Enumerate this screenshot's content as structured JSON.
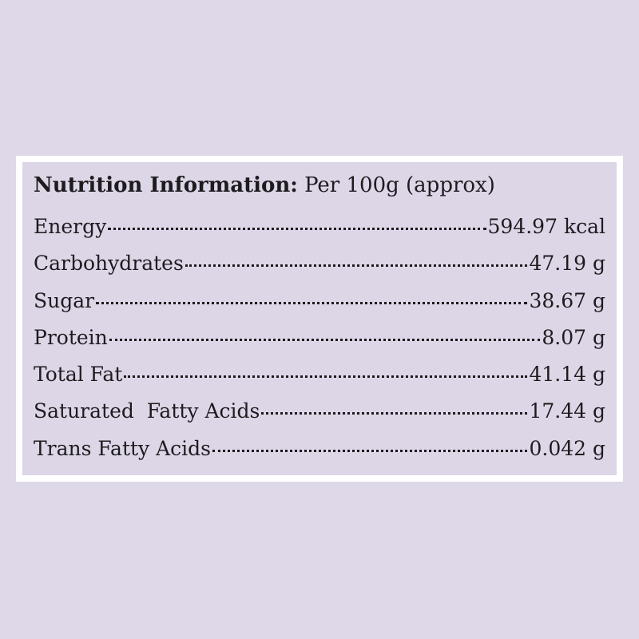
{
  "header": {
    "title": "Nutrition Information:",
    "subtitle": "Per 100g (approx)"
  },
  "table": {
    "rows": [
      [
        "Energy",
        "594.97 kcal"
      ],
      [
        "Carbohydrates",
        "47.19 g"
      ],
      [
        "Sugar",
        "38.67 g"
      ],
      [
        "Protein",
        "8.07 g"
      ],
      [
        "Total Fat",
        "41.14 g"
      ],
      [
        "Saturated  Fatty Acids",
        "17.44 g"
      ],
      [
        "Trans Fatty Acids",
        "0.042 g"
      ]
    ]
  }
}
